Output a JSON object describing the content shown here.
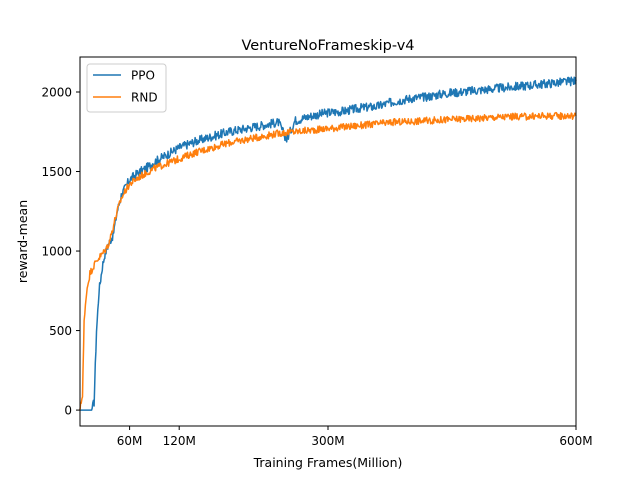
{
  "chart_data": {
    "type": "line",
    "title": "VentureNoFrameskip-v4",
    "xlabel": "Training Frames(Million)",
    "ylabel": "reward-mean",
    "xlim": [
      0,
      600
    ],
    "ylim": [
      -100,
      2220
    ],
    "x_ticks": [
      60,
      120,
      300,
      600
    ],
    "x_tick_labels": [
      "60M",
      "120M",
      "300M",
      "600M"
    ],
    "y_ticks": [
      0,
      500,
      1000,
      1500,
      2000
    ],
    "y_tick_labels": [
      "0",
      "500",
      "1000",
      "1500",
      "2000"
    ],
    "grid": false,
    "legend_position": "top-left",
    "series": [
      {
        "name": "PPO",
        "color": "#1f77b4",
        "x": [
          0,
          10,
          14,
          17,
          20,
          23,
          27,
          30,
          35,
          40,
          45,
          50,
          55,
          60,
          70,
          80,
          90,
          100,
          110,
          120,
          140,
          160,
          180,
          200,
          220,
          240,
          250,
          260,
          280,
          300,
          320,
          340,
          360,
          380,
          400,
          420,
          440,
          460,
          480,
          500,
          520,
          540,
          560,
          580,
          600
        ],
        "y": [
          0,
          0,
          0,
          50,
          500,
          750,
          900,
          980,
          1050,
          1100,
          1250,
          1350,
          1400,
          1450,
          1490,
          1520,
          1560,
          1590,
          1620,
          1650,
          1690,
          1720,
          1750,
          1770,
          1790,
          1810,
          1700,
          1820,
          1850,
          1870,
          1880,
          1900,
          1910,
          1940,
          1960,
          1970,
          1990,
          2000,
          2010,
          2020,
          2030,
          2040,
          2050,
          2060,
          2070
        ]
      },
      {
        "name": "RND",
        "color": "#ff7f0e",
        "x": [
          0,
          3,
          5,
          8,
          12,
          16,
          20,
          25,
          30,
          35,
          40,
          45,
          50,
          55,
          60,
          70,
          80,
          90,
          100,
          110,
          120,
          140,
          160,
          180,
          200,
          220,
          240,
          260,
          280,
          300,
          320,
          340,
          360,
          380,
          400,
          420,
          440,
          460,
          480,
          500,
          520,
          540,
          560,
          580,
          600
        ],
        "y": [
          0,
          100,
          550,
          750,
          860,
          900,
          940,
          970,
          1000,
          1050,
          1150,
          1250,
          1330,
          1380,
          1420,
          1460,
          1490,
          1520,
          1540,
          1560,
          1580,
          1620,
          1650,
          1680,
          1700,
          1720,
          1740,
          1750,
          1760,
          1770,
          1780,
          1790,
          1800,
          1810,
          1815,
          1820,
          1825,
          1830,
          1835,
          1840,
          1845,
          1845,
          1850,
          1850,
          1850
        ]
      }
    ]
  }
}
